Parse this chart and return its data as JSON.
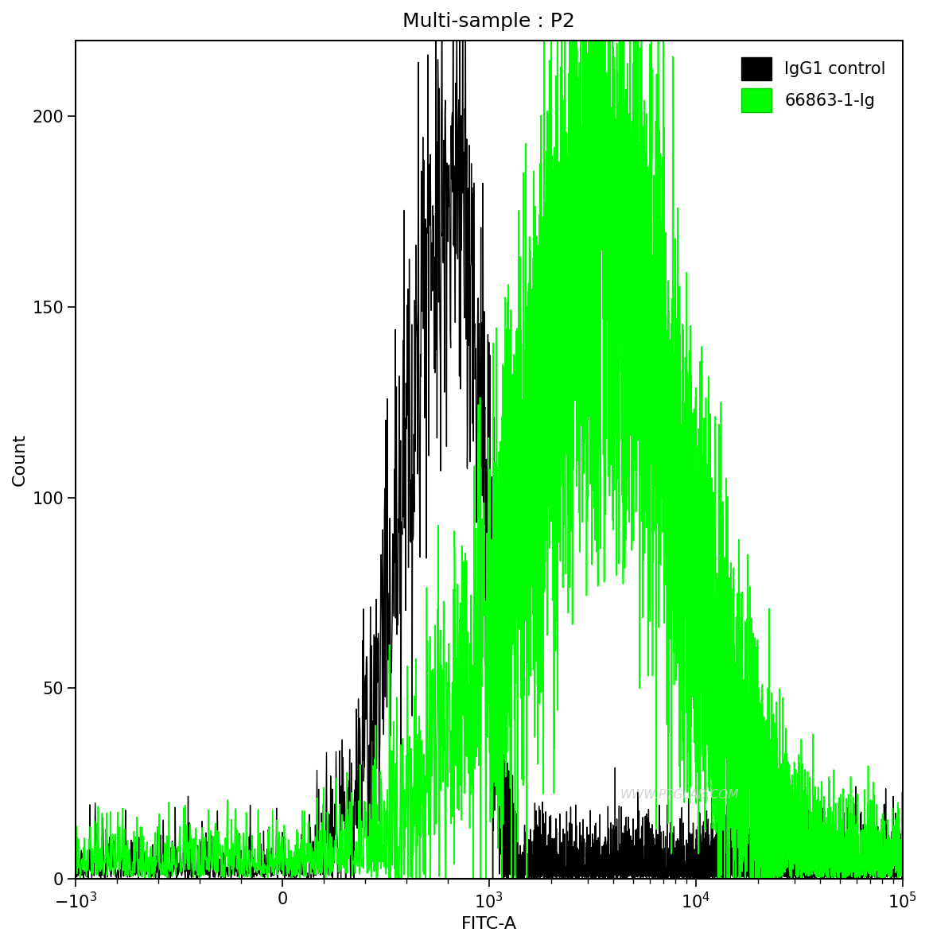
{
  "title": "Multi-sample : P2",
  "xlabel": "FITC-A",
  "ylabel": "Count",
  "ylim": [
    0,
    220
  ],
  "yticks": [
    0,
    50,
    100,
    150,
    200
  ],
  "background_color": "#ffffff",
  "line_color_black": "#000000",
  "line_color_green": "#00ff00",
  "legend_labels": [
    "IgG1 control",
    "66863-1-Ig"
  ],
  "watermark": "WWW.PTGLAB.COM",
  "title_fontsize": 18,
  "label_fontsize": 16,
  "tick_fontsize": 15,
  "legend_fontsize": 15
}
